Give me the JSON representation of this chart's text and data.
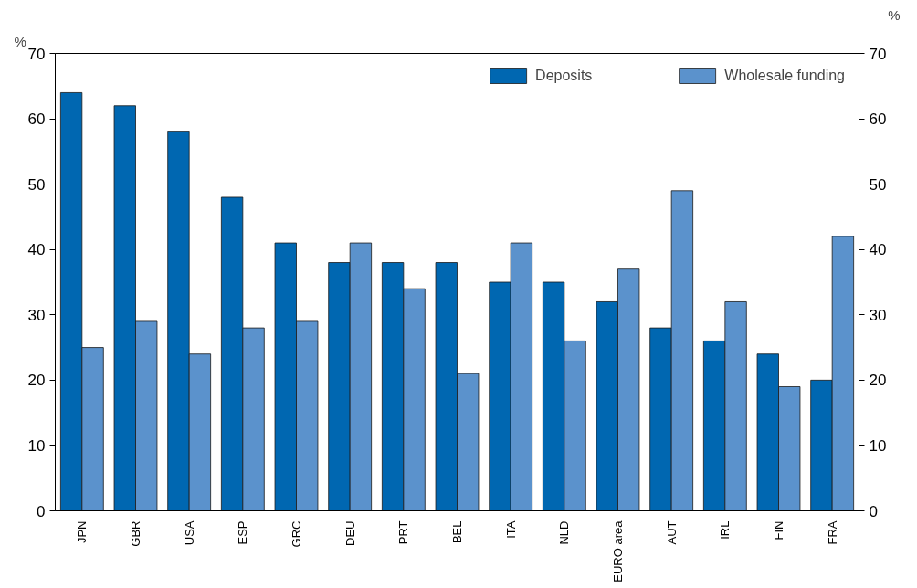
{
  "chart_data": {
    "type": "bar",
    "ylabel": "%",
    "y2label": "%",
    "categories": [
      "JPN",
      "GBR",
      "USA",
      "ESP",
      "GRC",
      "DEU",
      "PRT",
      "BEL",
      "ITA",
      "NLD",
      "EURO area",
      "AUT",
      "IRL",
      "FIN",
      "FRA"
    ],
    "series": [
      {
        "name": "Deposits",
        "color": "#0067b1",
        "values": [
          64,
          62,
          58,
          48,
          41,
          38,
          38,
          38,
          35,
          35,
          32,
          28,
          26,
          24,
          20
        ]
      },
      {
        "name": "Wholesale funding",
        "color": "#5b92cc",
        "values": [
          25,
          29,
          24,
          28,
          29,
          41,
          34,
          21,
          41,
          26,
          37,
          49,
          32,
          19,
          42
        ]
      }
    ],
    "ylim": [
      0,
      70
    ],
    "yticks": [
      0,
      10,
      20,
      30,
      40,
      50,
      60,
      70
    ],
    "y2lim": [
      0,
      70
    ],
    "y2ticks": [
      0,
      10,
      20,
      30,
      40,
      50,
      60,
      70
    ],
    "grid": false,
    "legend": "top right"
  }
}
